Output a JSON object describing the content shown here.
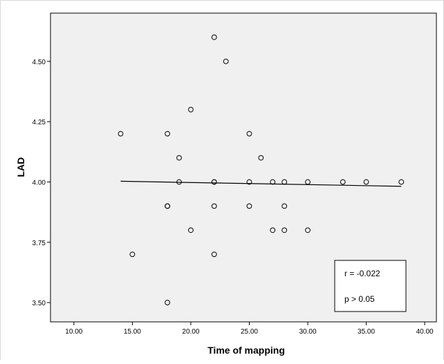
{
  "chart_data": {
    "type": "scatter",
    "title": "",
    "xlabel": "Time of mapping",
    "ylabel": "LAD",
    "xlim": [
      8,
      41
    ],
    "ylim": [
      3.42,
      4.7
    ],
    "x_ticks": [
      10,
      15,
      20,
      25,
      30,
      35,
      40
    ],
    "x_tick_labels": [
      "10.00",
      "15.00",
      "20.00",
      "25.00",
      "30.00",
      "35.00",
      "40.00"
    ],
    "y_ticks": [
      3.5,
      3.75,
      4.0,
      4.25,
      4.5
    ],
    "y_tick_labels": [
      "3.50",
      "3.75",
      "4.00",
      "4.25",
      "4.50"
    ],
    "grid": false,
    "background_color": "#f0f0f0",
    "marker": "open-circle",
    "points": [
      {
        "x": 14,
        "y": 4.2
      },
      {
        "x": 15,
        "y": 3.7
      },
      {
        "x": 18,
        "y": 4.2
      },
      {
        "x": 18,
        "y": 3.9
      },
      {
        "x": 18,
        "y": 3.9
      },
      {
        "x": 18,
        "y": 3.5
      },
      {
        "x": 19,
        "y": 4.1
      },
      {
        "x": 19,
        "y": 4.0
      },
      {
        "x": 20,
        "y": 4.3
      },
      {
        "x": 20,
        "y": 3.8
      },
      {
        "x": 22,
        "y": 4.6
      },
      {
        "x": 22,
        "y": 4.0
      },
      {
        "x": 22,
        "y": 4.0
      },
      {
        "x": 22,
        "y": 3.9
      },
      {
        "x": 22,
        "y": 3.7
      },
      {
        "x": 23,
        "y": 4.5
      },
      {
        "x": 25,
        "y": 4.2
      },
      {
        "x": 25,
        "y": 4.0
      },
      {
        "x": 25,
        "y": 3.9
      },
      {
        "x": 26,
        "y": 4.1
      },
      {
        "x": 27,
        "y": 4.0
      },
      {
        "x": 27,
        "y": 3.8
      },
      {
        "x": 28,
        "y": 4.0
      },
      {
        "x": 28,
        "y": 3.9
      },
      {
        "x": 28,
        "y": 3.8
      },
      {
        "x": 30,
        "y": 4.0
      },
      {
        "x": 30,
        "y": 3.8
      },
      {
        "x": 33,
        "y": 4.0
      },
      {
        "x": 35,
        "y": 4.0
      },
      {
        "x": 38,
        "y": 4.0
      }
    ],
    "fit_line": {
      "x": [
        14,
        38
      ],
      "y": [
        4.003,
        3.982
      ]
    },
    "annotation": {
      "lines": [
        "r = -0.022",
        "p > 0.05"
      ]
    }
  }
}
